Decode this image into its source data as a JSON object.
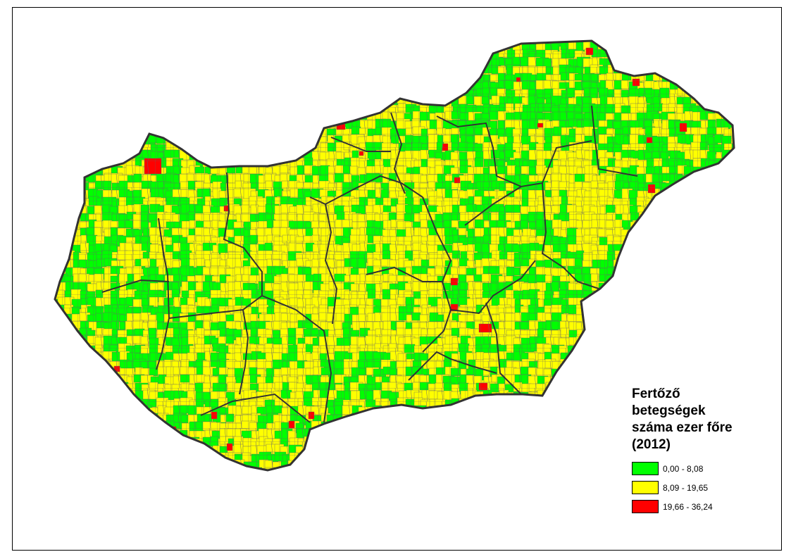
{
  "legend": {
    "title_lines": [
      "Fertőző",
      "betegségek",
      "száma ezer főre",
      "(2012)"
    ],
    "items": [
      {
        "label": "0,00 - 8,08",
        "color": "#00ff00"
      },
      {
        "label": "8,09 - 19,65",
        "color": "#ffff00"
      },
      {
        "label": "19,66 - 36,24",
        "color": "#ff0000"
      }
    ]
  },
  "map": {
    "country": "Hungary",
    "category_colors": {
      "low": "#00ff00",
      "mid": "#ffff00",
      "high": "#ff0000"
    },
    "border_color": "#333333",
    "cell_border_color": "#666666"
  }
}
